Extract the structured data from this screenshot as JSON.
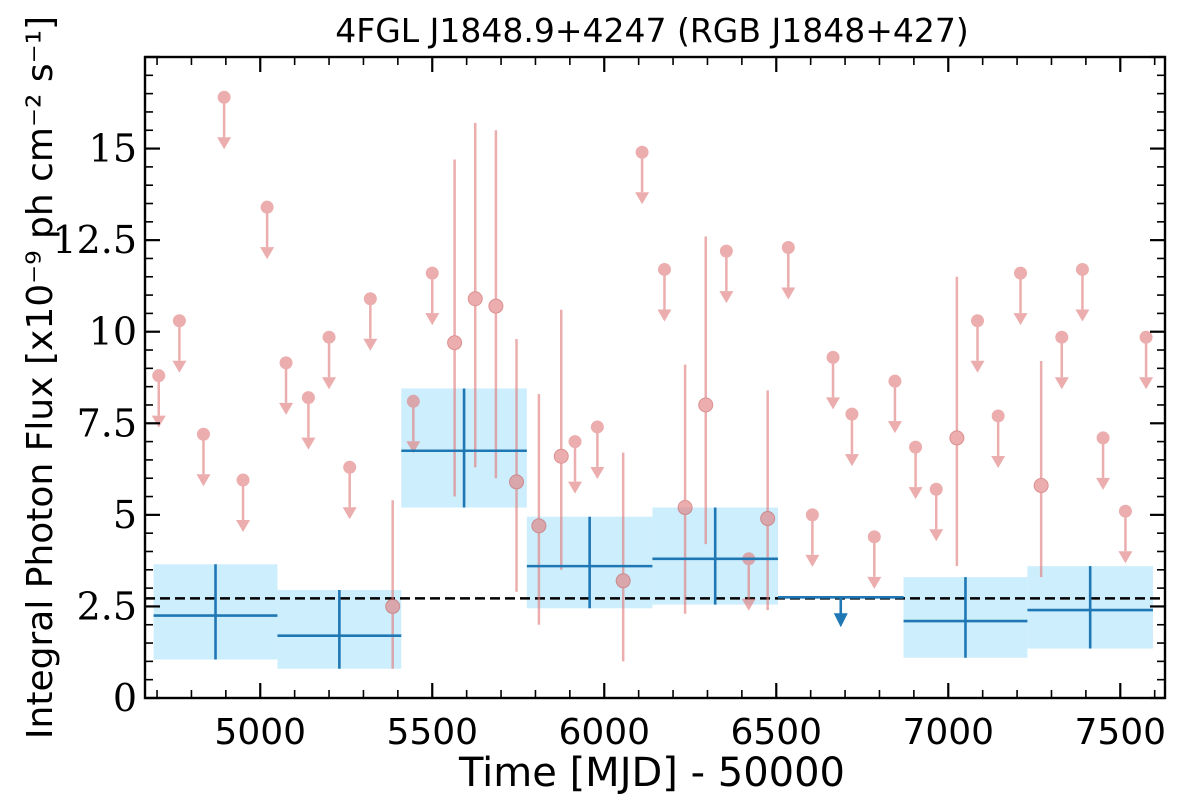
{
  "chart_data": {
    "type": "scatter",
    "title": "4FGL J1848.9+4247 (RGB J1848+427)",
    "xlabel": "Time [MJD] - 50000",
    "ylabel": "Integral Photon Flux [x10⁻⁹ ph cm⁻² s⁻¹]",
    "xlim": [
      4665,
      7630
    ],
    "ylim": [
      0,
      17.5
    ],
    "xticks": [
      5000,
      5500,
      6000,
      6500,
      7000,
      7500
    ],
    "xtick_labels": [
      "5000",
      "5500",
      "6000",
      "6500",
      "7000",
      "7500"
    ],
    "yticks": [
      0,
      2.5,
      5,
      7.5,
      10,
      12.5,
      15
    ],
    "ytick_labels": [
      "0",
      "2.5",
      "5",
      "7.5",
      "10",
      "12.5",
      "15"
    ],
    "mean_flux": 2.72,
    "colors": {
      "fine": "#e07b7b",
      "coarse": "#1f77b4",
      "coarse_band": "#cdeefc"
    },
    "series": [
      {
        "binning": "30-day",
        "upper_limits": [
          {
            "x": 4705,
            "y": 8.8
          },
          {
            "x": 4765,
            "y": 10.3
          },
          {
            "x": 4835,
            "y": 7.2
          },
          {
            "x": 4895,
            "y": 16.4
          },
          {
            "x": 4950,
            "y": 5.95
          },
          {
            "x": 5020,
            "y": 13.4
          },
          {
            "x": 5075,
            "y": 9.15
          },
          {
            "x": 5140,
            "y": 8.2
          },
          {
            "x": 5200,
            "y": 9.85
          },
          {
            "x": 5260,
            "y": 6.3
          },
          {
            "x": 5320,
            "y": 10.9
          },
          {
            "x": 5445,
            "y": 8.1
          },
          {
            "x": 5500,
            "y": 11.6
          },
          {
            "x": 5915,
            "y": 7.0
          },
          {
            "x": 5980,
            "y": 7.4
          },
          {
            "x": 6110,
            "y": 14.9
          },
          {
            "x": 6175,
            "y": 11.7
          },
          {
            "x": 6355,
            "y": 12.2
          },
          {
            "x": 6420,
            "y": 3.8
          },
          {
            "x": 6535,
            "y": 12.3
          },
          {
            "x": 6605,
            "y": 5.0
          },
          {
            "x": 6665,
            "y": 9.3
          },
          {
            "x": 6720,
            "y": 7.75
          },
          {
            "x": 6785,
            "y": 4.4
          },
          {
            "x": 6845,
            "y": 8.65
          },
          {
            "x": 6905,
            "y": 6.85
          },
          {
            "x": 6965,
            "y": 5.7
          },
          {
            "x": 7085,
            "y": 10.3
          },
          {
            "x": 7145,
            "y": 7.7
          },
          {
            "x": 7210,
            "y": 11.6
          },
          {
            "x": 7330,
            "y": 9.85
          },
          {
            "x": 7390,
            "y": 11.7
          },
          {
            "x": 7450,
            "y": 7.1
          },
          {
            "x": 7515,
            "y": 5.1
          },
          {
            "x": 7575,
            "y": 9.85
          }
        ],
        "detections": [
          {
            "x": 5385,
            "y": 2.5,
            "lo": 0.8,
            "hi": 5.4
          },
          {
            "x": 5565,
            "y": 9.7,
            "lo": 5.5,
            "hi": 14.7
          },
          {
            "x": 5625,
            "y": 10.9,
            "lo": 6.3,
            "hi": 15.7
          },
          {
            "x": 5685,
            "y": 10.7,
            "lo": 6.0,
            "hi": 15.5
          },
          {
            "x": 5745,
            "y": 5.9,
            "lo": 2.9,
            "hi": 9.8
          },
          {
            "x": 5810,
            "y": 4.7,
            "lo": 2.0,
            "hi": 8.3
          },
          {
            "x": 5875,
            "y": 6.6,
            "lo": 3.5,
            "hi": 10.6
          },
          {
            "x": 6055,
            "y": 3.2,
            "lo": 1.0,
            "hi": 6.7
          },
          {
            "x": 6235,
            "y": 5.2,
            "lo": 2.3,
            "hi": 9.1
          },
          {
            "x": 6295,
            "y": 8.0,
            "lo": 4.2,
            "hi": 12.6
          },
          {
            "x": 6475,
            "y": 4.9,
            "lo": 2.4,
            "hi": 8.4
          },
          {
            "x": 7025,
            "y": 7.1,
            "lo": 3.6,
            "hi": 11.5
          },
          {
            "x": 7270,
            "y": 5.8,
            "lo": 3.3,
            "hi": 9.2
          }
        ]
      },
      {
        "binning": "1-year",
        "bins": [
          {
            "x0": 4690,
            "x1": 5050,
            "y": 2.25,
            "lo": 1.05,
            "hi": 3.65
          },
          {
            "x0": 5050,
            "x1": 5410,
            "y": 1.7,
            "lo": 0.8,
            "hi": 2.95
          },
          {
            "x0": 5410,
            "x1": 5775,
            "y": 6.75,
            "lo": 5.2,
            "hi": 8.45
          },
          {
            "x0": 5775,
            "x1": 6140,
            "y": 3.6,
            "lo": 2.45,
            "hi": 4.95
          },
          {
            "x0": 6140,
            "x1": 6505,
            "y": 3.8,
            "lo": 2.55,
            "hi": 5.2
          },
          {
            "x0": 6870,
            "x1": 7230,
            "y": 2.1,
            "lo": 1.1,
            "hi": 3.3
          },
          {
            "x0": 7230,
            "x1": 7595,
            "y": 2.4,
            "lo": 1.35,
            "hi": 3.6
          }
        ],
        "upper_limits": [
          {
            "x0": 6505,
            "x1": 6870,
            "y": 2.75
          }
        ]
      }
    ]
  }
}
